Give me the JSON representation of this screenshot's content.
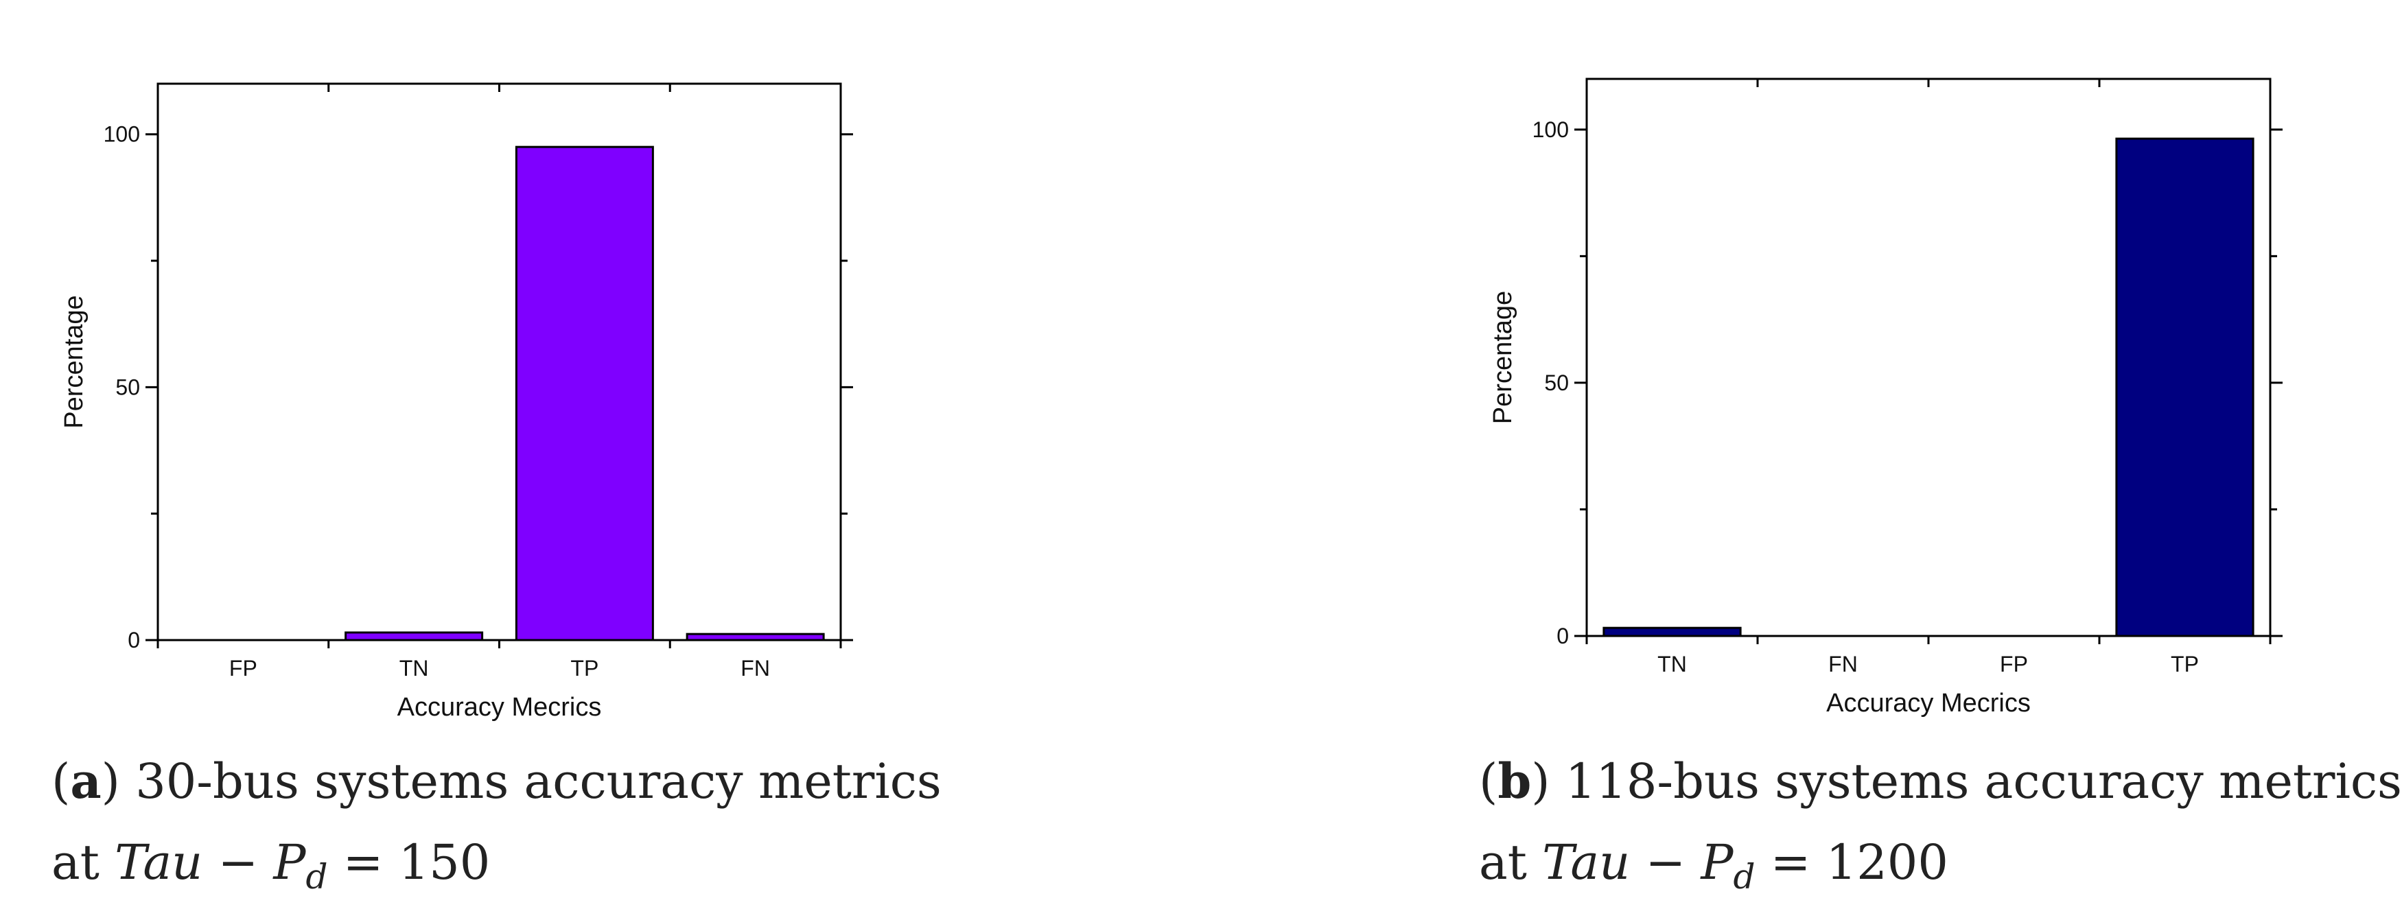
{
  "chart_data": [
    {
      "type": "bar",
      "categories": [
        "FP",
        "TN",
        "TP",
        "FN"
      ],
      "values": [
        0,
        1.5,
        97.5,
        1.2
      ],
      "ylabel": "Percentage",
      "xlabel": "Accuracy Mecrics",
      "ylim": [
        0,
        110
      ],
      "yticks": [
        0,
        50,
        100
      ],
      "grid": false,
      "bar_color": "#7f00ff",
      "caption": {
        "letter": "a",
        "text": "30-bus systems accuracy metrics",
        "line2_prefix": "at",
        "math_var": "Tau",
        "math_op": "−",
        "math_p": "P",
        "math_sub": "d",
        "math_eq": "=",
        "math_value": "150"
      }
    },
    {
      "type": "bar",
      "categories": [
        "TN",
        "FN",
        "FP",
        "TP"
      ],
      "values": [
        1.6,
        0,
        0,
        98.2
      ],
      "ylabel": "Percentage",
      "xlabel": "Accuracy Mecrics",
      "ylim": [
        0,
        110
      ],
      "yticks": [
        0,
        50,
        100
      ],
      "grid": false,
      "bar_color": "#000080",
      "caption": {
        "letter": "b",
        "text": "118-bus systems accuracy metrics",
        "line2_prefix": "at",
        "math_var": "Tau",
        "math_op": "−",
        "math_p": "P",
        "math_sub": "d",
        "math_eq": "=",
        "math_value": "1200"
      }
    }
  ]
}
